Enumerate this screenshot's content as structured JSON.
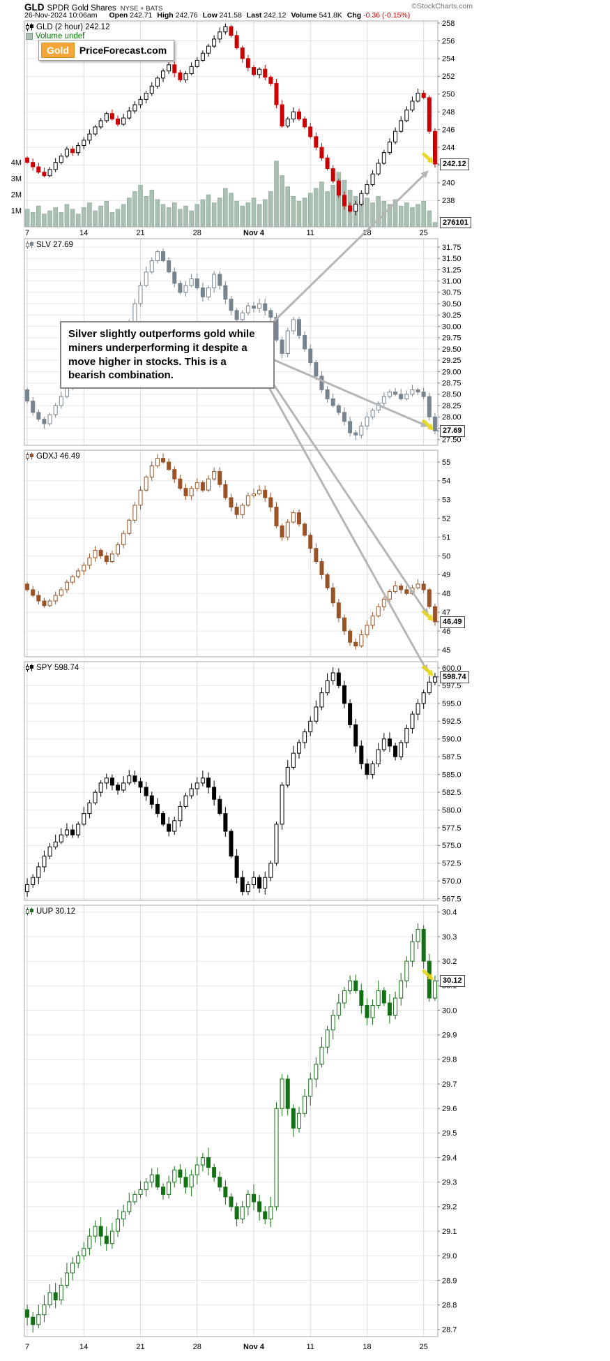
{
  "header": {
    "symbol": "GLD",
    "name": "SPDR Gold Shares",
    "exchange": "NYSE + BATS",
    "copyright": "©StockCharts.com",
    "datetime": "26-Nov-2024 10:06am",
    "quote": {
      "open_label": "Open",
      "open": "242.71",
      "high_label": "High",
      "high": "242.76",
      "low_label": "Low",
      "low": "241.58",
      "last_label": "Last",
      "last": "242.12",
      "volume_label": "Volume",
      "volume": "541.8K",
      "chg_label": "Chg",
      "chg": "-0.36 (-0.15%)"
    }
  },
  "logo": {
    "part1": "Gold",
    "part2": "PriceForecast.com"
  },
  "annotation": {
    "text": "Silver slightly outperforms gold while\nminers underperforming it despite a\nmove higher in stocks. This is a\nbearish combination."
  },
  "axis_dates": [
    "7",
    "14",
    "21",
    "28",
    "Nov 4",
    "11",
    "18",
    "25"
  ],
  "colors": {
    "leader_line": "#3a50c0",
    "grid": "#e8e8e8",
    "week_grid": "#d9d9d9",
    "panel_border": "#a7a7a7",
    "arrow": "#b5b5b5",
    "highlight": "#e6d620",
    "negative": "#cc0000"
  },
  "chart_data": [
    {
      "type": "candlestick",
      "symbol": "GLD",
      "timeframe": "2 hour",
      "legend": "GLD (2 hour) 242.12",
      "last": 242.12,
      "last_label": "242.12",
      "up_color": "#000000",
      "down_color": "#cc0000",
      "ylim": [
        235.04,
        258.24
      ],
      "yticks": [
        238,
        240,
        242,
        244,
        246,
        248,
        250,
        252,
        254,
        256,
        258
      ],
      "tick_decimals": 0,
      "closes": [
        242.3,
        241.8,
        241.2,
        240.8,
        241.5,
        242.3,
        243.0,
        243.8,
        243.4,
        244.2,
        244.8,
        245.5,
        246.3,
        247.0,
        247.8,
        247.2,
        246.6,
        247.3,
        248.1,
        248.8,
        249.4,
        250.1,
        250.9,
        251.8,
        252.6,
        253.3,
        252.4,
        251.6,
        252.3,
        253.1,
        253.8,
        254.6,
        255.4,
        256.2,
        257.0,
        257.6,
        256.6,
        255.2,
        254.0,
        253.0,
        252.2,
        252.8,
        251.9,
        251.2,
        248.8,
        246.4,
        247.2,
        248.0,
        247.2,
        246.3,
        245.2,
        244.0,
        242.8,
        241.6,
        240.2,
        238.6,
        237.4,
        236.8,
        237.6,
        238.8,
        239.8,
        241.0,
        242.2,
        243.4,
        244.6,
        245.8,
        247.0,
        248.2,
        249.2,
        250.1,
        249.6,
        245.8,
        242.12
      ],
      "volume": {
        "legend": "Volume undef",
        "last_label": "276101",
        "last_value": 276101,
        "color": "#a9c0b2",
        "border": "#7f9c89",
        "axis_labels": [
          "1M",
          "2M",
          "3M",
          "4M"
        ],
        "values_millions": [
          1.1,
          0.9,
          1.3,
          0.8,
          1.0,
          1.2,
          0.9,
          1.4,
          1.1,
          0.8,
          1.2,
          1.5,
          1.0,
          1.3,
          1.6,
          0.9,
          1.1,
          1.4,
          1.8,
          2.2,
          2.6,
          1.9,
          2.3,
          1.7,
          1.4,
          1.2,
          1.5,
          1.1,
          1.3,
          1.0,
          1.4,
          1.7,
          2.0,
          1.5,
          1.8,
          2.4,
          2.1,
          1.6,
          1.3,
          1.5,
          1.8,
          1.4,
          1.7,
          2.2,
          4.1,
          3.2,
          2.5,
          1.9,
          1.6,
          1.8,
          2.1,
          2.4,
          2.8,
          2.2,
          2.6,
          3.4,
          2.9,
          2.3,
          1.9,
          1.6,
          1.8,
          1.5,
          1.9,
          1.6,
          1.4,
          1.7,
          1.3,
          1.5,
          1.2,
          1.4,
          1.6,
          1.0,
          0.28
        ]
      }
    },
    {
      "type": "candlestick",
      "symbol": "SLV",
      "legend": "SLV 27.69",
      "last": 27.69,
      "last_label": "27.69",
      "up_color": "#76848f",
      "down_color": "#76848f",
      "ylim": [
        27.374,
        31.935
      ],
      "yticks": [
        27.5,
        27.75,
        28,
        28.25,
        28.5,
        28.75,
        29,
        29.25,
        29.5,
        29.75,
        30,
        30.25,
        30.5,
        30.75,
        31,
        31.25,
        31.5,
        31.75
      ],
      "tick_decimals": 2,
      "closes": [
        28.35,
        28.1,
        27.95,
        27.85,
        28.05,
        28.25,
        28.45,
        28.65,
        28.8,
        28.95,
        29.1,
        29.2,
        29.35,
        29.5,
        29.4,
        29.3,
        29.5,
        29.75,
        30.1,
        30.5,
        30.9,
        31.2,
        31.45,
        31.65,
        31.45,
        31.2,
        30.95,
        30.75,
        30.9,
        31.05,
        30.85,
        30.65,
        30.85,
        31.15,
        30.9,
        30.6,
        30.35,
        30.15,
        30.3,
        30.45,
        30.4,
        30.5,
        30.35,
        30.2,
        29.7,
        29.4,
        29.9,
        30.15,
        29.8,
        29.5,
        29.2,
        28.9,
        28.6,
        28.4,
        28.25,
        28.1,
        27.9,
        27.65,
        27.6,
        27.8,
        28.0,
        28.15,
        28.3,
        28.45,
        28.55,
        28.5,
        28.4,
        28.5,
        28.6,
        28.55,
        28.45,
        28.0,
        27.69
      ]
    },
    {
      "type": "candlestick",
      "symbol": "GDXJ",
      "legend": "GDXJ 46.49",
      "last": 46.49,
      "last_label": "46.49",
      "up_color": "#9a5326",
      "down_color": "#9a5326",
      "ylim": [
        44.628,
        55.632
      ],
      "yticks": [
        45,
        46,
        47,
        48,
        49,
        50,
        51,
        52,
        53,
        54,
        55
      ],
      "tick_decimals": 0,
      "closes": [
        48.2,
        47.9,
        47.6,
        47.35,
        47.6,
        47.9,
        48.2,
        48.6,
        48.9,
        49.2,
        49.5,
        49.9,
        50.3,
        50.0,
        49.7,
        50.1,
        50.6,
        51.2,
        51.9,
        52.7,
        53.5,
        54.2,
        54.8,
        55.2,
        55.0,
        54.6,
        54.1,
        53.6,
        53.2,
        53.6,
        53.9,
        53.5,
        54.1,
        54.5,
        53.8,
        53.1,
        52.6,
        52.2,
        52.7,
        53.2,
        53.3,
        53.5,
        53.1,
        52.6,
        51.6,
        51.0,
        51.8,
        52.3,
        51.7,
        51.1,
        50.4,
        49.7,
        49.0,
        48.3,
        47.5,
        46.7,
        46.0,
        45.4,
        45.2,
        45.8,
        46.3,
        46.8,
        47.3,
        47.7,
        48.1,
        48.4,
        48.2,
        48.0,
        48.3,
        48.5,
        48.2,
        47.3,
        46.49
      ]
    },
    {
      "type": "candlestick",
      "symbol": "SPY",
      "legend": "SPY 598.74",
      "last": 598.74,
      "last_label": "598.74",
      "up_color": "#000000",
      "down_color": "#000000",
      "ylim": [
        567.28,
        600.88
      ],
      "yticks": [
        567.5,
        570,
        572.5,
        575,
        577.5,
        580,
        582.5,
        585,
        587.5,
        590,
        592.5,
        595,
        597.5,
        600
      ],
      "tick_decimals": 1,
      "closes": [
        569.5,
        570.5,
        572.0,
        573.5,
        574.8,
        575.5,
        576.5,
        577.2,
        576.5,
        578.0,
        579.5,
        581.0,
        582.5,
        583.8,
        584.5,
        583.5,
        582.8,
        583.8,
        584.8,
        584.0,
        583.2,
        582.0,
        580.8,
        579.5,
        578.0,
        577.0,
        578.5,
        580.5,
        582.0,
        583.0,
        583.8,
        584.5,
        583.2,
        581.5,
        579.5,
        577.0,
        573.5,
        570.5,
        568.5,
        569.5,
        570.5,
        569.0,
        570.5,
        572.5,
        578.0,
        583.5,
        586.0,
        588.0,
        589.5,
        591.0,
        592.5,
        594.5,
        596.5,
        598.2,
        599.3,
        597.5,
        595.0,
        592.0,
        589.0,
        586.5,
        585.0,
        586.5,
        588.5,
        590.0,
        589.0,
        587.5,
        589.5,
        591.5,
        593.5,
        595.0,
        596.5,
        598.0,
        598.74
      ]
    },
    {
      "type": "candlestick",
      "symbol": "UUP",
      "legend": "UUP 30.12",
      "last": 30.12,
      "last_label": "30.12",
      "up_color": "#147014",
      "down_color": "#147014",
      "ylim": [
        28.671,
        30.428
      ],
      "yticks": [
        28.7,
        28.8,
        28.9,
        29,
        29.1,
        29.2,
        29.3,
        29.4,
        29.5,
        29.6,
        29.7,
        29.8,
        29.9,
        30,
        30.1,
        30.2,
        30.3,
        30.4
      ],
      "tick_decimals": 1,
      "closes": [
        28.75,
        28.72,
        28.76,
        28.8,
        28.85,
        28.82,
        28.88,
        28.93,
        28.97,
        29.0,
        29.03,
        29.08,
        29.12,
        29.08,
        29.05,
        29.1,
        29.15,
        29.18,
        29.22,
        29.25,
        29.27,
        29.3,
        29.33,
        29.28,
        29.25,
        29.3,
        29.35,
        29.32,
        29.28,
        29.33,
        29.37,
        29.4,
        29.36,
        29.32,
        29.28,
        29.24,
        29.2,
        29.15,
        29.2,
        29.25,
        29.22,
        29.18,
        29.15,
        29.2,
        29.6,
        29.72,
        29.6,
        29.52,
        29.58,
        29.65,
        29.72,
        29.78,
        29.85,
        29.92,
        29.98,
        30.03,
        30.08,
        30.12,
        30.08,
        30.02,
        29.97,
        30.02,
        30.08,
        30.03,
        29.98,
        30.05,
        30.12,
        30.2,
        30.28,
        30.33,
        30.2,
        30.05,
        30.12
      ]
    }
  ]
}
